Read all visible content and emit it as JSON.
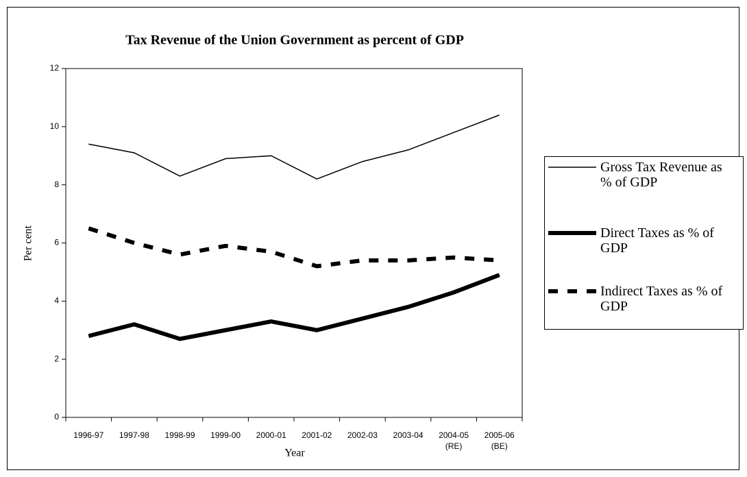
{
  "chart_data": {
    "type": "line",
    "title": "Tax Revenue of the Union Government as percent of GDP",
    "x_label": "Year",
    "y_label": "Per cent",
    "categories": [
      "1996-97",
      "1997-98",
      "1998-99",
      "1999-00",
      "2000-01",
      "2001-02",
      "2002-03",
      "2003-04",
      "2004-05\n(RE)",
      "2005-06\n(BE)"
    ],
    "series": [
      {
        "name": "Gross Tax Revenue as % of GDP",
        "color": "#000000",
        "values": [
          9.4,
          9.1,
          8.3,
          8.9,
          9.0,
          8.2,
          8.8,
          9.2,
          9.8,
          10.4
        ]
      },
      {
        "name": "Direct Taxes as % of GDP",
        "color": "#000000",
        "values": [
          2.8,
          3.2,
          2.7,
          3.0,
          3.3,
          3.0,
          3.4,
          3.8,
          4.3,
          4.9
        ]
      },
      {
        "name": "Indirect Taxes as % of GDP",
        "color": "#000000",
        "values": [
          6.5,
          6.0,
          5.6,
          5.9,
          5.7,
          5.2,
          5.4,
          5.4,
          5.5,
          5.4
        ]
      }
    ],
    "ylim": [
      0,
      12
    ],
    "yticks": [
      0,
      2,
      4,
      6,
      8,
      10,
      12
    ],
    "grid": false,
    "legend": "right"
  }
}
